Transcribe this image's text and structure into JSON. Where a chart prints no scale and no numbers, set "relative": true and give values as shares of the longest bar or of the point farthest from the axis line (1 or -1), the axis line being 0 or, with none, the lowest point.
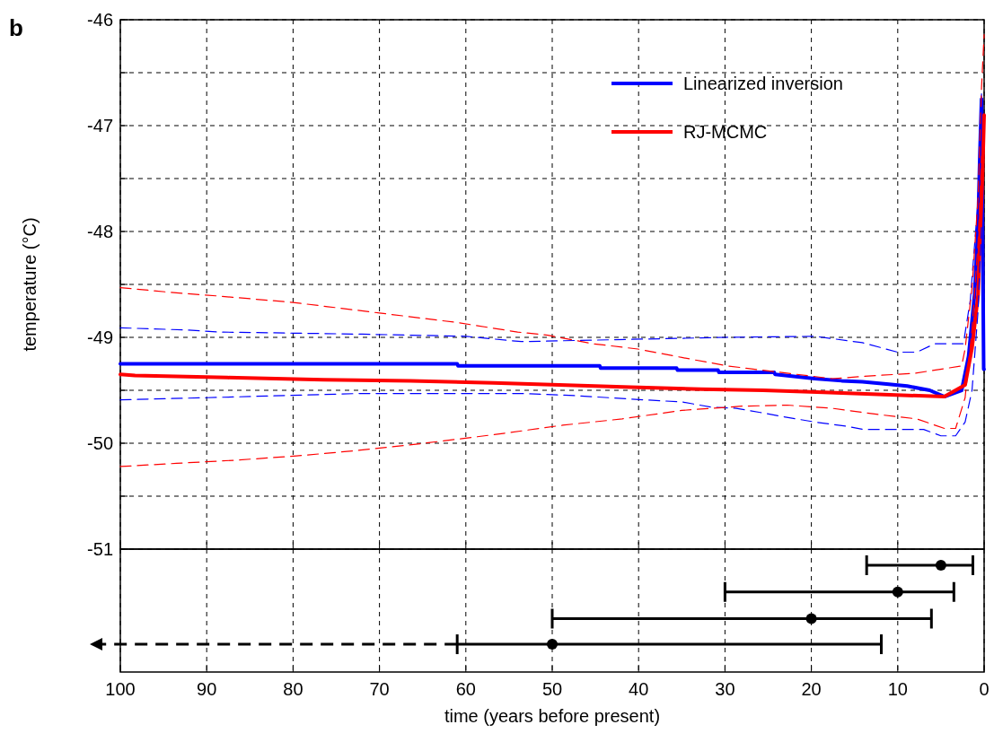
{
  "chart_data": [
    {
      "type": "line",
      "annotations": [
        "b"
      ],
      "ylabel": "temperature (°C)",
      "xlim": [
        100,
        0
      ],
      "xticks": [
        100,
        90,
        80,
        70,
        60,
        50,
        40,
        30,
        20,
        10,
        0
      ],
      "ylim": [
        -51,
        -46
      ],
      "yticks": [
        -51,
        {
          "value": -50.5,
          "label": null
        },
        -50,
        {
          "value": -49.5,
          "label": null
        },
        -49,
        {
          "value": -48.5,
          "label": null
        },
        -48,
        {
          "value": -47.5,
          "label": null
        },
        -47,
        {
          "value": -46.5,
          "label": null
        },
        -46
      ],
      "grid": true,
      "legend": "top right",
      "tick_labels": "y",
      "series": [
        {
          "name": "Linearized inversion",
          "color": "#0000ff",
          "x": [
            100,
            61,
            60.9,
            44.5,
            44.4,
            35.6,
            35.5,
            30.8,
            30.7,
            24.3,
            24.2,
            19.6,
            16.5,
            14.1,
            11.3,
            8.9,
            6.3,
            4.6,
            2.6,
            1.8,
            1.1,
            0.7,
            0.5,
            0.3,
            0.05,
            0
          ],
          "values": [
            -49.25,
            -49.25,
            -49.27,
            -49.27,
            -49.29,
            -49.29,
            -49.31,
            -49.31,
            -49.33,
            -49.33,
            -49.35,
            -49.39,
            -49.41,
            -49.42,
            -49.44,
            -49.46,
            -49.5,
            -49.56,
            -49.5,
            -49.18,
            -48.59,
            -47.94,
            -47.29,
            -46.75,
            -49.3,
            -49.3
          ]
        },
        {
          "name": "RJ-MCMC",
          "color": "#ff0000",
          "x": [
            100,
            98.3,
            87.6,
            76.5,
            66.4,
            56.8,
            49.2,
            40.9,
            32.8,
            25.6,
            18.6,
            4.6,
            2.2,
            1.4,
            0.7,
            0.5,
            0.2,
            0
          ],
          "values": [
            -49.35,
            -49.36,
            -49.38,
            -49.4,
            -49.41,
            -49.43,
            -49.45,
            -49.47,
            -49.49,
            -49.5,
            -49.52,
            -49.56,
            -49.45,
            -49.1,
            -48.6,
            -48.1,
            -47.5,
            -46.9
          ]
        },
        {
          "color": "#0000ff",
          "line_style": "dashed",
          "x": [
            100,
            92.5,
            88.5,
            80,
            72,
            60,
            53.6,
            35.6,
            30,
            19.6,
            14.1,
            10,
            7.8,
            5.7,
            2.4,
            1.6,
            0.7,
            0.3
          ],
          "values": [
            -48.91,
            -48.93,
            -48.95,
            -48.96,
            -48.97,
            -48.99,
            -49.04,
            -49.01,
            -49,
            -48.99,
            -49.05,
            -49.14,
            -49.14,
            -49.06,
            -49.06,
            -48.65,
            -47.7,
            -46.7
          ]
        },
        {
          "color": "#0000ff",
          "line_style": "dashed",
          "x": [
            100,
            90,
            72.3,
            53.6,
            47.4,
            41.5,
            39.4,
            35,
            31.5,
            28.7,
            25.9,
            23.2,
            19.6,
            15.9,
            14,
            7,
            5,
            3.3,
            2.2,
            1.4,
            0.7,
            0.3
          ],
          "values": [
            -49.59,
            -49.57,
            -49.53,
            -49.53,
            -49.55,
            -49.58,
            -49.59,
            -49.61,
            -49.66,
            -49.67,
            -49.71,
            -49.75,
            -49.8,
            -49.84,
            -49.87,
            -49.87,
            -49.93,
            -49.93,
            -49.8,
            -49.5,
            -48.75,
            -47.94
          ]
        },
        {
          "color": "#ff0000",
          "line_style": "dashed",
          "x": [
            100,
            93.5,
            88.6,
            80,
            76,
            70,
            61,
            54,
            50.5,
            45.3,
            40.1,
            35,
            29.7,
            17.6,
            12.4,
            8.1,
            2.6,
            2.2,
            1.4,
            0.7,
            0.3,
            0
          ],
          "values": [
            -48.53,
            -48.58,
            -48.61,
            -48.67,
            -48.71,
            -48.77,
            -48.86,
            -48.95,
            -48.98,
            -49.06,
            -49.11,
            -49.19,
            -49.27,
            -49.39,
            -49.36,
            -49.34,
            -49.27,
            -49.11,
            -48.53,
            -47.68,
            -46.64,
            -46.14
          ]
        },
        {
          "color": "#ff0000",
          "line_style": "dashed",
          "x": [
            100,
            93.5,
            86.6,
            79.6,
            72.7,
            65.8,
            58.8,
            55,
            48.8,
            41.9,
            35,
            28,
            22.8,
            17.6,
            12.1,
            7.8,
            4.6,
            3.3,
            2.2,
            1.4,
            0.7,
            0.3
          ],
          "values": [
            -50.22,
            -50.19,
            -50.16,
            -50.12,
            -50.07,
            -50.01,
            -49.94,
            -49.9,
            -49.83,
            -49.77,
            -49.69,
            -49.65,
            -49.64,
            -49.67,
            -49.73,
            -49.77,
            -49.86,
            -49.86,
            -49.57,
            -48.92,
            -48.1,
            -47.29
          ]
        }
      ]
    },
    {
      "type": "scatter",
      "xlabel": "time (years before present)",
      "xlim": [
        100,
        0
      ],
      "xticks": [
        100,
        90,
        80,
        70,
        60,
        50,
        40,
        30,
        20,
        10,
        0
      ],
      "grid": "x",
      "tick_labels": "x",
      "relative": true,
      "marker": "circle",
      "color": "#000000",
      "x": [
        5,
        10,
        20,
        50
      ],
      "values": [
        1,
        0.75,
        0.5,
        0.26
      ],
      "xerrors": [
        [
          1.3,
          13.6
        ],
        [
          3.5,
          30
        ],
        [
          6.1,
          50
        ],
        [
          11.9,
          61
        ]
      ]
    }
  ]
}
